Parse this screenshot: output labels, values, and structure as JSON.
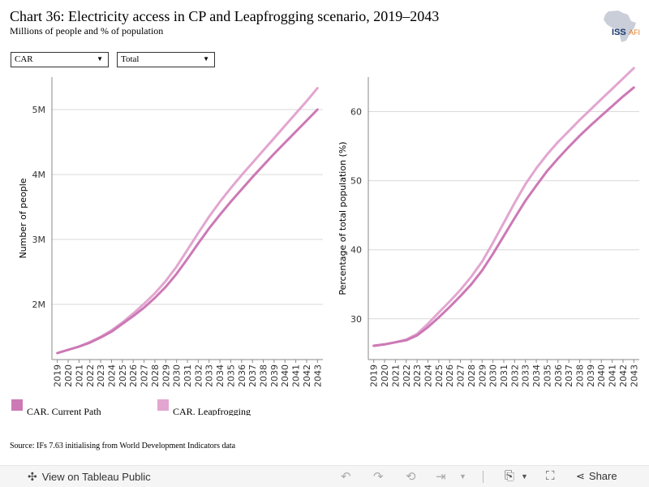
{
  "header": {
    "title": "Chart 36: Electricity access in CP and Leapfrogging scenario, 2019–2043",
    "subtitle": "Millions of people and % of population",
    "logo_text_1": "ISS",
    "logo_text_2": "AFI"
  },
  "filters": {
    "country": "CAR",
    "type": "Total"
  },
  "colors": {
    "current_path": "#cc79b5",
    "leapfrogging": "#e2a6d0",
    "gridline": "#d9d9d9",
    "axis": "#888888"
  },
  "legend": {
    "current_path": "CAR. Current Path",
    "leapfrogging": "CAR. Leapfrogging"
  },
  "source": "Source: IFs 7.63 initialising from World Development Indicators data",
  "footer": {
    "tableau_link": "View on Tableau Public",
    "share": "Share"
  },
  "chart_data": [
    {
      "type": "line",
      "ylabel": "Number of people",
      "xlabel": "",
      "x": [
        "2019",
        "2020",
        "2021",
        "2022",
        "2023",
        "2024",
        "2025",
        "2026",
        "2027",
        "2028",
        "2029",
        "2030",
        "2031",
        "2032",
        "2033",
        "2034",
        "2035",
        "2036",
        "2037",
        "2038",
        "2039",
        "2040",
        "2041",
        "2042",
        "2043"
      ],
      "ylim": [
        1.15,
        5.5
      ],
      "yticks": [
        2,
        3,
        4,
        5
      ],
      "ytick_labels": [
        "2M",
        "3M",
        "4M",
        "5M"
      ],
      "grid": true,
      "series": [
        {
          "name": "CAR. Current Path",
          "values": [
            1.25,
            1.3,
            1.35,
            1.41,
            1.49,
            1.58,
            1.7,
            1.82,
            1.95,
            2.1,
            2.27,
            2.47,
            2.7,
            2.94,
            3.17,
            3.38,
            3.58,
            3.77,
            3.96,
            4.14,
            4.32,
            4.49,
            4.66,
            4.83,
            5.0
          ]
        },
        {
          "name": "CAR. Leapfrogging",
          "values": [
            1.25,
            1.3,
            1.35,
            1.42,
            1.5,
            1.6,
            1.72,
            1.86,
            2.01,
            2.17,
            2.36,
            2.58,
            2.84,
            3.1,
            3.35,
            3.58,
            3.79,
            3.99,
            4.18,
            4.37,
            4.56,
            4.75,
            4.94,
            5.13,
            5.33
          ]
        }
      ]
    },
    {
      "type": "line",
      "ylabel": "Percentage of total population (%)",
      "xlabel": "",
      "x": [
        "2019",
        "2020",
        "2021",
        "2022",
        "2023",
        "2024",
        "2025",
        "2026",
        "2027",
        "2028",
        "2029",
        "2030",
        "2031",
        "2032",
        "2033",
        "2034",
        "2035",
        "2036",
        "2037",
        "2038",
        "2039",
        "2040",
        "2041",
        "2042",
        "2043"
      ],
      "ylim": [
        24.1,
        65.0
      ],
      "yticks": [
        30,
        40,
        50,
        60
      ],
      "ytick_labels": [
        "30",
        "40",
        "50",
        "60"
      ],
      "grid": true,
      "series": [
        {
          "name": "CAR. Current Path",
          "values": [
            26.1,
            26.3,
            26.6,
            26.9,
            27.6,
            28.8,
            30.2,
            31.7,
            33.3,
            35.0,
            37.0,
            39.4,
            42.0,
            44.6,
            47.1,
            49.3,
            51.4,
            53.2,
            54.9,
            56.5,
            58.0,
            59.4,
            60.8,
            62.2,
            63.5
          ]
        },
        {
          "name": "CAR. Leapfrogging",
          "values": [
            26.1,
            26.3,
            26.6,
            27.0,
            27.8,
            29.3,
            30.9,
            32.5,
            34.2,
            36.1,
            38.3,
            41.0,
            43.9,
            46.8,
            49.5,
            51.8,
            53.8,
            55.6,
            57.2,
            58.8,
            60.3,
            61.8,
            63.3,
            64.8,
            66.3
          ]
        }
      ]
    }
  ]
}
